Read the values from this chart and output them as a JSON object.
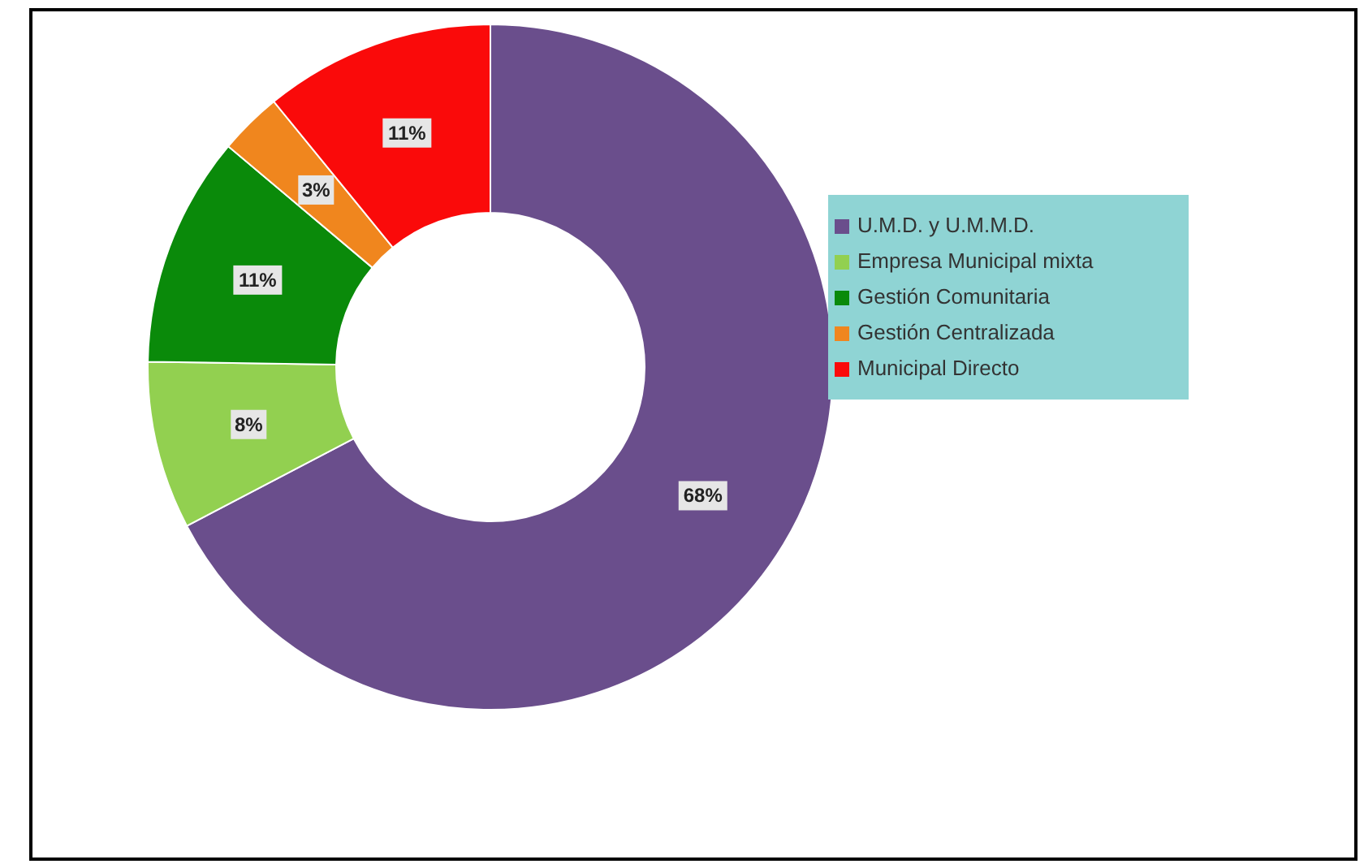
{
  "chart_data": {
    "type": "donut",
    "categories": [
      "U.M.D. y U.M.M.D.",
      "Empresa Municipal mixta",
      "Gestión Comunitaria",
      "Gestión Centralizada",
      "Municipal Directo"
    ],
    "values": [
      68,
      8,
      11,
      3,
      11
    ],
    "colors": [
      "#6a4e8c",
      "#92d050",
      "#0a8a0a",
      "#f0861e",
      "#fa0a0a"
    ],
    "value_labels": [
      "68%",
      "8%",
      "11%",
      "3%",
      "11%"
    ],
    "legend": "right"
  }
}
